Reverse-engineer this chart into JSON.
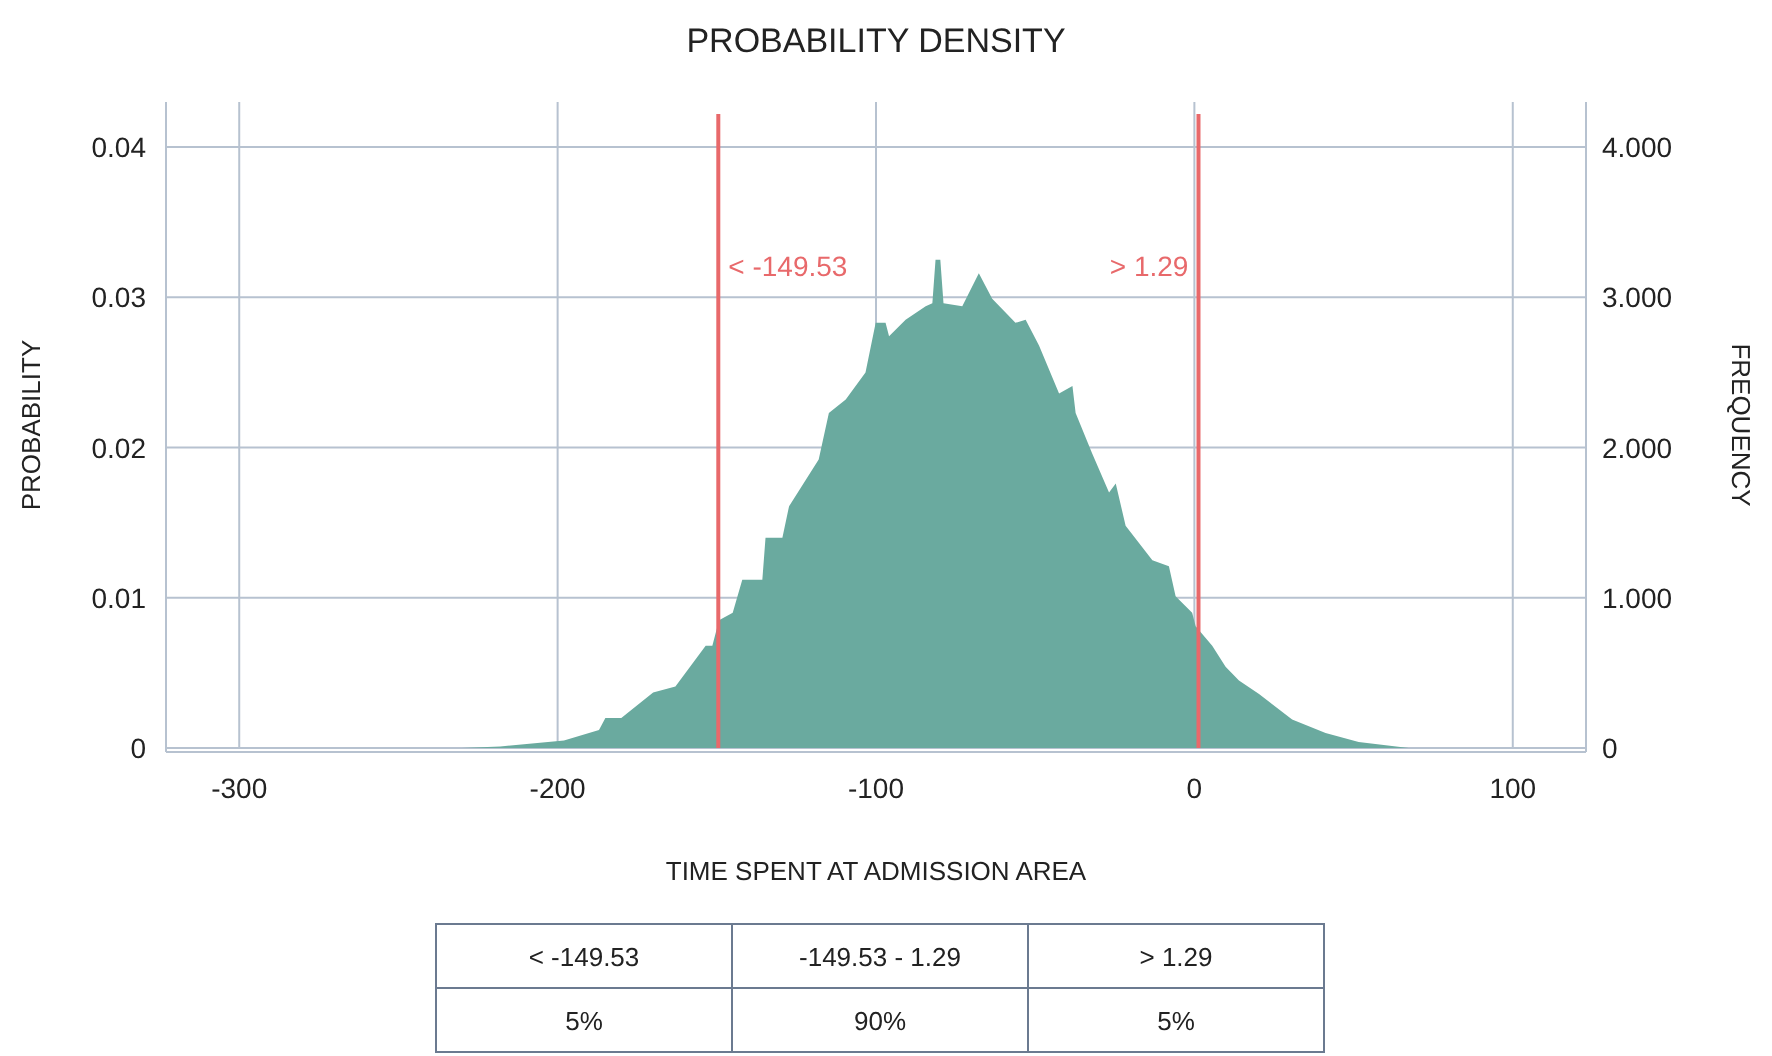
{
  "chart_data": {
    "type": "area",
    "title": "PROBABILITY DENSITY",
    "xlabel": "TIME SPENT AT ADMISSION AREA",
    "ylabel": "PROBABILITY",
    "y2label": "FREQUENCY",
    "xlim": [
      -323,
      123
    ],
    "xticks": [
      -300,
      -200,
      -100,
      0,
      100
    ],
    "ylim": [
      0,
      0.043
    ],
    "yticks": [
      0,
      0.01,
      0.02,
      0.03,
      0.04
    ],
    "y2lim": [
      0,
      4.3
    ],
    "y2ticks": [
      0,
      {
        "value": 1,
        "label": "1.000"
      },
      {
        "value": 2,
        "label": "2.000"
      },
      {
        "value": 3,
        "label": "3.000"
      },
      {
        "value": 4,
        "label": "4.000"
      }
    ],
    "grid": true,
    "series": [
      {
        "color": "#6aaa9f",
        "x": [
          -230,
          -218,
          -198,
          -187,
          -185,
          -180,
          -170,
          -163,
          -153.5,
          -151.4,
          -149.3,
          -145,
          -142,
          -135.7,
          -134.7,
          -129.4,
          -127.3,
          -118,
          -114.8,
          -109.5,
          -103.3,
          -100.1,
          -97,
          -95.9,
          -90.7,
          -84.4,
          -82.3,
          -81.3,
          -79.8,
          -78.8,
          -72.9,
          -67.7,
          -63.5,
          -56.2,
          -53,
          -48.8,
          -42.5,
          -38.3,
          -37.3,
          -32.1,
          -26.8,
          -24.7,
          -21.6,
          -13.2,
          -8,
          -5.9,
          -0.7,
          0.4,
          5.6,
          9.8,
          14,
          20.3,
          30.7,
          41.2,
          51.6,
          67.3
        ],
        "values": [
          0,
          0.0001,
          0.0005,
          0.0012,
          0.002,
          0.002,
          0.0037,
          0.0041,
          0.0068,
          0.0068,
          0.0085,
          0.009,
          0.0112,
          0.0112,
          0.014,
          0.014,
          0.0161,
          0.0192,
          0.0223,
          0.0232,
          0.025,
          0.0283,
          0.0283,
          0.0274,
          0.0285,
          0.0294,
          0.0296,
          0.0325,
          0.0325,
          0.0296,
          0.0294,
          0.0316,
          0.0299,
          0.0283,
          0.0285,
          0.0268,
          0.0236,
          0.0241,
          0.0223,
          0.0196,
          0.017,
          0.0176,
          0.0148,
          0.0125,
          0.0121,
          0.0101,
          0.009,
          0.0081,
          0.0068,
          0.0054,
          0.0045,
          0.0036,
          0.0019,
          0.001,
          0.0004,
          0
        ]
      }
    ],
    "ref_lines": [
      {
        "axis": "x",
        "value": -149.53,
        "label": "< -149.53",
        "color": "#e8696b"
      },
      {
        "axis": "x",
        "value": 1.29,
        "label": "> 1.29",
        "color": "#e8696b"
      }
    ],
    "annotations": [
      "< -149.53",
      "-149.53 - 1.29",
      "> 1.29",
      "5%",
      "90%",
      "5%"
    ]
  }
}
